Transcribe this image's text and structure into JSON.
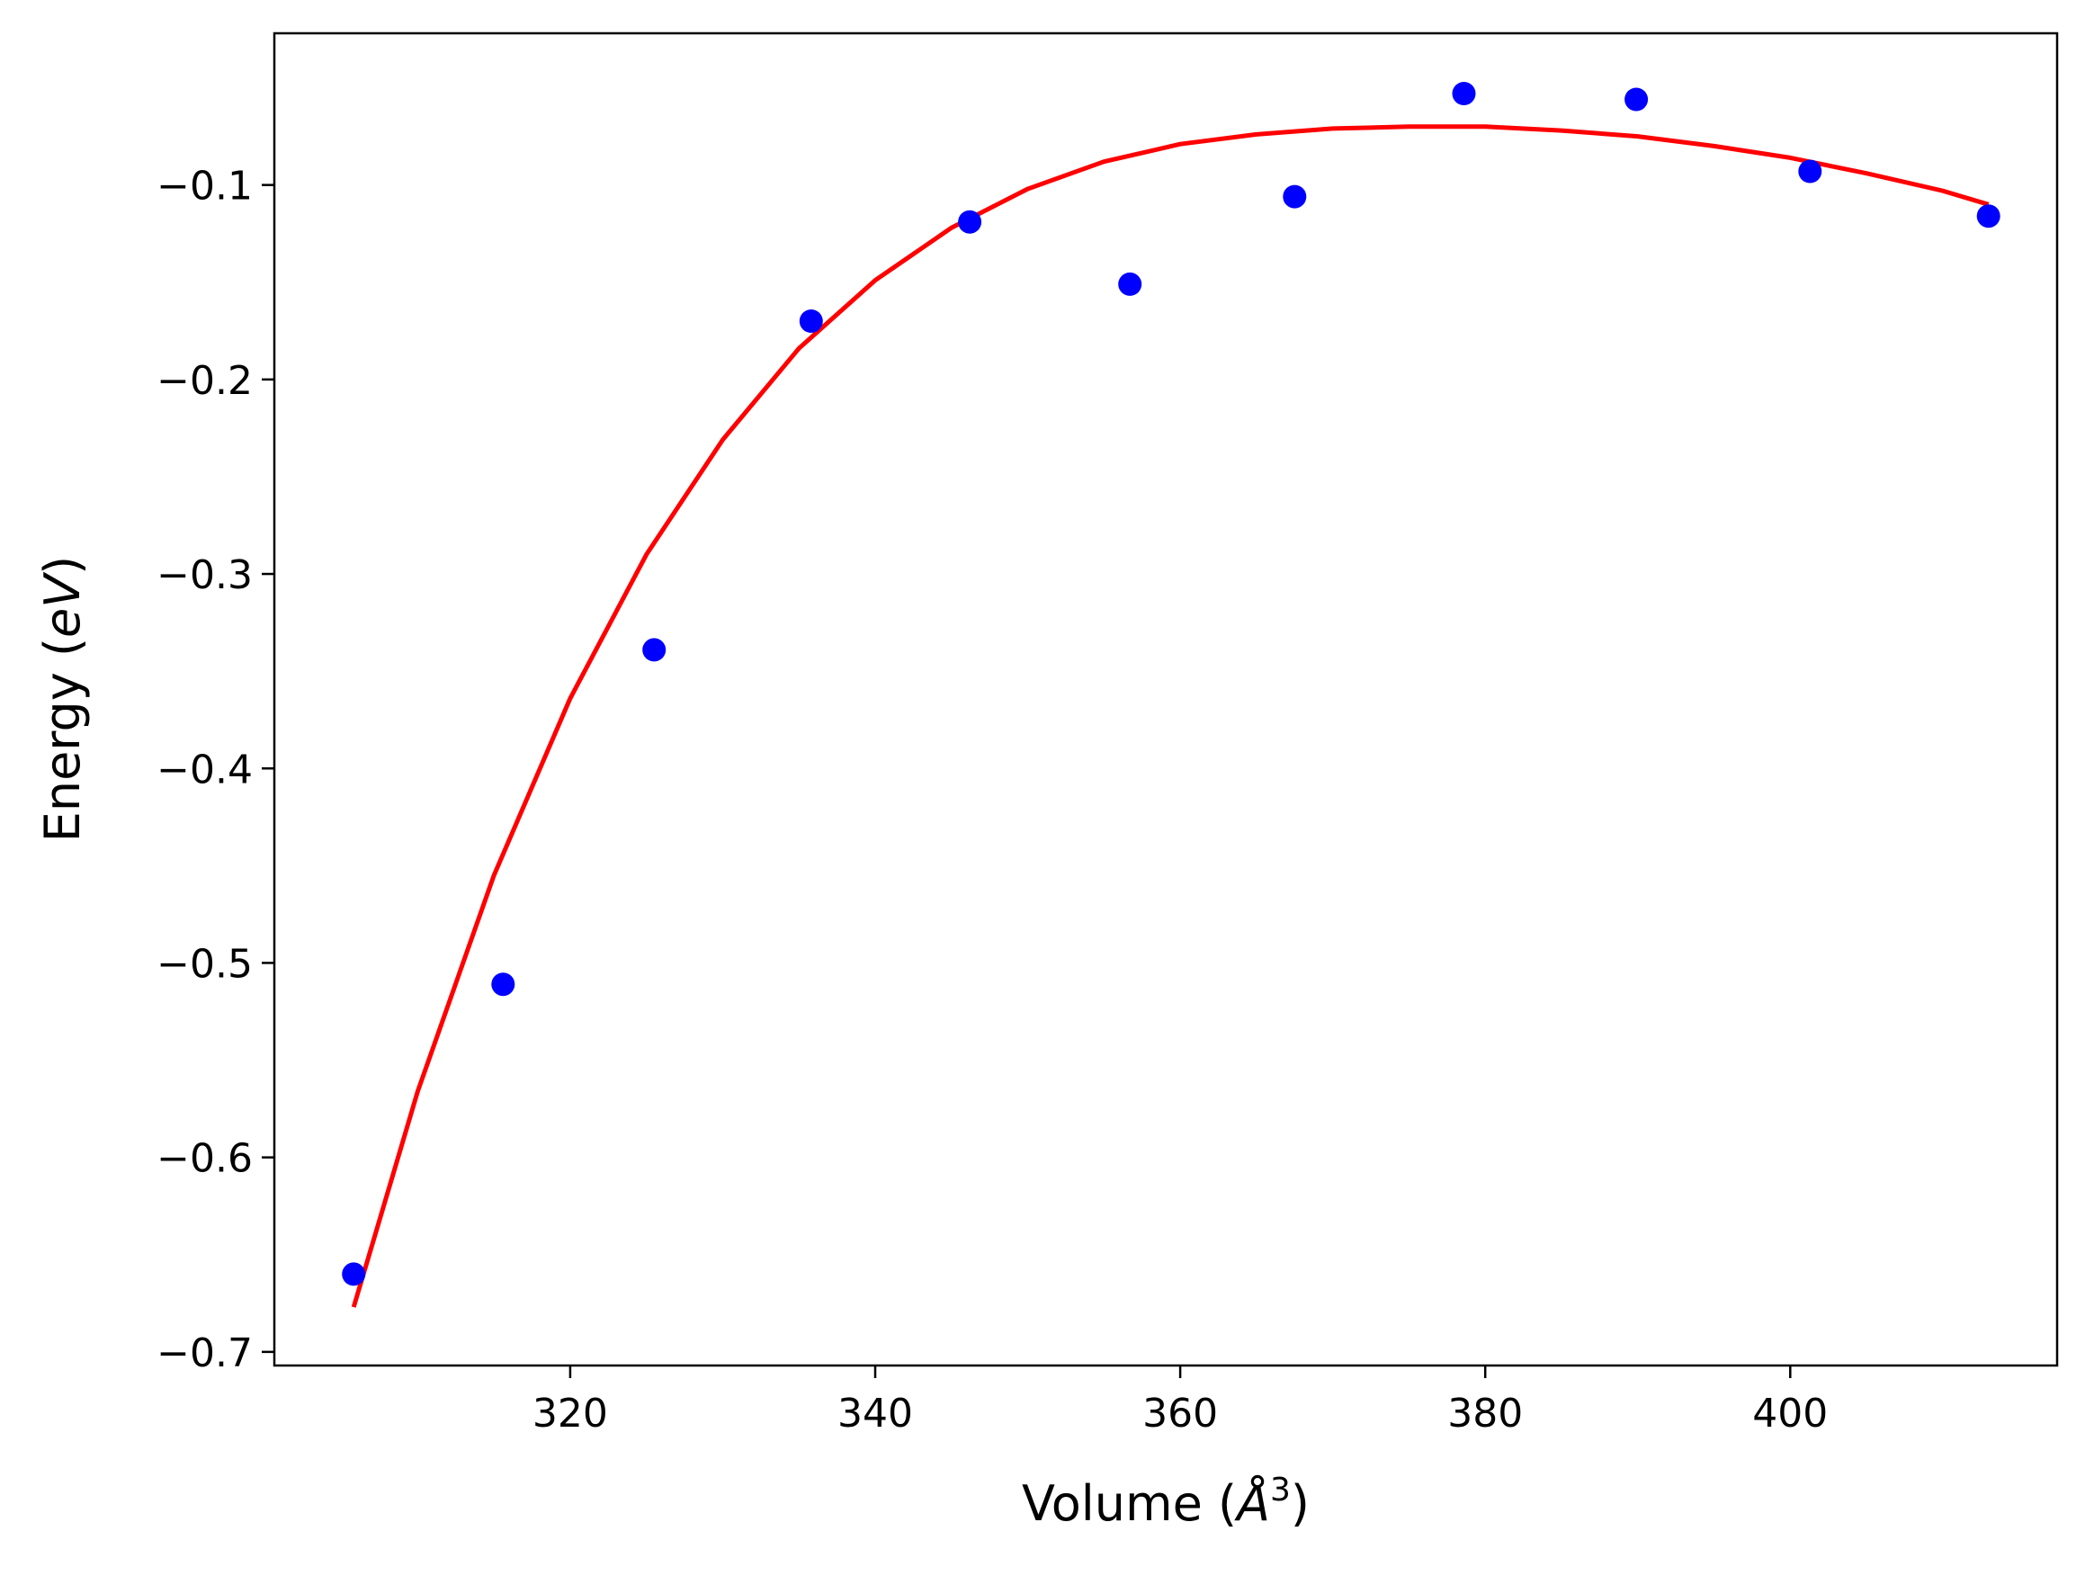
{
  "chart_data": {
    "type": "scatter",
    "xlabel": "Volume (Å³)",
    "ylabel": "Energy (eV)",
    "xlabel_parts": {
      "prefix": "Volume (",
      "symbol": "Å",
      "sup": "3",
      "suffix": ")"
    },
    "ylabel_parts": {
      "prefix": "Energy (",
      "unit": "eV",
      "suffix": ")"
    },
    "xlim": [
      300.6,
      417.5
    ],
    "ylim": [
      -0.707,
      -0.022
    ],
    "xticks": [
      320,
      340,
      360,
      380,
      400
    ],
    "xtick_labels": [
      "320",
      "340",
      "360",
      "380",
      "400"
    ],
    "yticks": [
      -0.1,
      -0.2,
      -0.3,
      -0.4,
      -0.5,
      -0.6,
      -0.7
    ],
    "ytick_labels": [
      "−0.1",
      "−0.2",
      "−0.3",
      "−0.4",
      "−0.5",
      "−0.6",
      "−0.7"
    ],
    "grid": false,
    "legend": false,
    "series": [
      {
        "kind": "scatter",
        "color": "#0000ff",
        "points": [
          {
            "x": 305.8,
            "y": -0.66
          },
          {
            "x": 315.6,
            "y": -0.511
          },
          {
            "x": 325.5,
            "y": -0.339
          },
          {
            "x": 335.8,
            "y": -0.17
          },
          {
            "x": 346.2,
            "y": -0.119
          },
          {
            "x": 356.7,
            "y": -0.151
          },
          {
            "x": 367.5,
            "y": -0.106
          },
          {
            "x": 378.6,
            "y": -0.053
          },
          {
            "x": 389.9,
            "y": -0.056
          },
          {
            "x": 401.3,
            "y": -0.093
          },
          {
            "x": 413.0,
            "y": -0.116
          }
        ]
      },
      {
        "kind": "line",
        "color": "#ff0000",
        "points": [
          {
            "x": 305.8,
            "y": -0.677
          },
          {
            "x": 310.0,
            "y": -0.566
          },
          {
            "x": 315.0,
            "y": -0.455
          },
          {
            "x": 320.0,
            "y": -0.364
          },
          {
            "x": 325.0,
            "y": -0.29
          },
          {
            "x": 330.0,
            "y": -0.231
          },
          {
            "x": 335.0,
            "y": -0.184
          },
          {
            "x": 340.0,
            "y": -0.149
          },
          {
            "x": 345.0,
            "y": -0.122
          },
          {
            "x": 350.0,
            "y": -0.102
          },
          {
            "x": 355.0,
            "y": -0.088
          },
          {
            "x": 360.0,
            "y": -0.079
          },
          {
            "x": 365.0,
            "y": -0.074
          },
          {
            "x": 370.0,
            "y": -0.071
          },
          {
            "x": 375.0,
            "y": -0.07
          },
          {
            "x": 380.0,
            "y": -0.07
          },
          {
            "x": 385.0,
            "y": -0.072
          },
          {
            "x": 390.0,
            "y": -0.075
          },
          {
            "x": 395.0,
            "y": -0.08
          },
          {
            "x": 400.0,
            "y": -0.086
          },
          {
            "x": 405.0,
            "y": -0.094
          },
          {
            "x": 410.0,
            "y": -0.103
          },
          {
            "x": 413.0,
            "y": -0.11
          }
        ]
      }
    ]
  }
}
